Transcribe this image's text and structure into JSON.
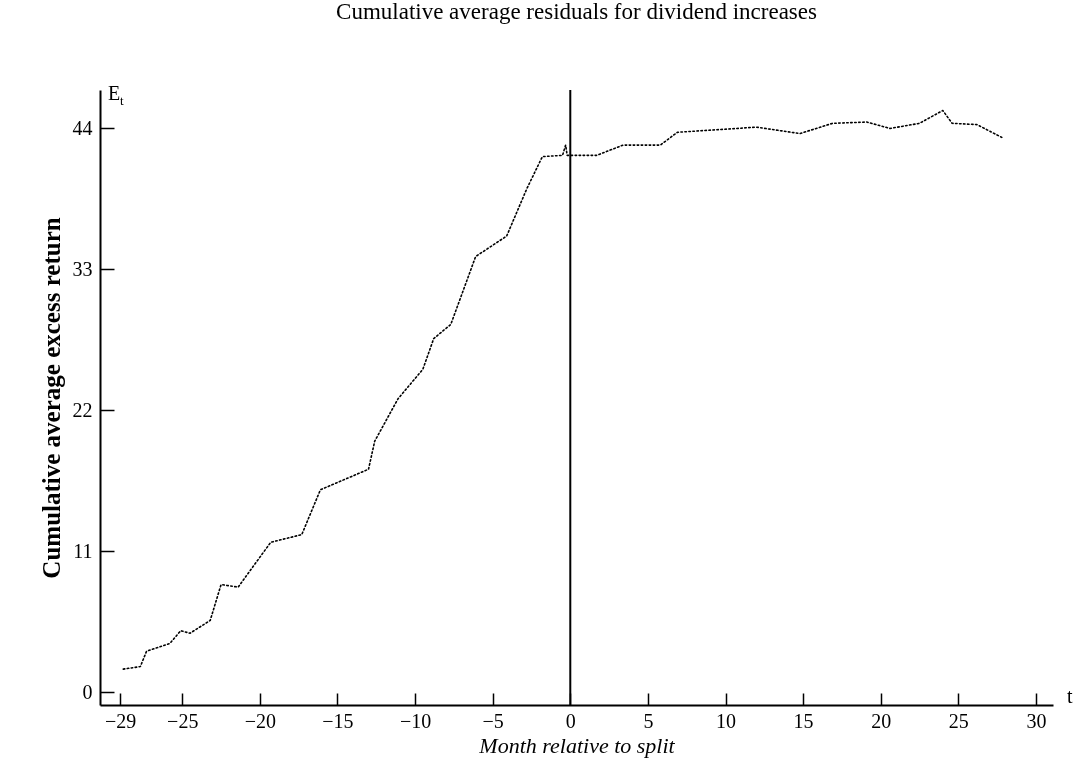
{
  "chart_data": {
    "type": "line",
    "title": "Cumulative average residuals for dividend increases",
    "xlabel": "Month relative to split",
    "ylabel": "Cumulative average excess return",
    "annotations": [
      "E$_{t}$",
      "t"
    ],
    "x": [
      -28.8,
      -27.7,
      -27.3,
      -25.8,
      -25.1,
      -24.5,
      -23.2,
      -22.5,
      -21.4,
      -19.3,
      -17.3,
      -16.1,
      -13.0,
      -12.6,
      -11.1,
      -9.5,
      -8.8,
      -7.7,
      -6.1,
      -4.1,
      -2.8,
      -1.8,
      -0.5,
      -0.3,
      -0.2,
      1.7,
      3.4,
      5.8,
      6.9,
      12.0,
      14.8,
      16.9,
      19.1,
      20.6,
      22.5,
      24.0,
      24.6,
      26.2,
      27.8
    ],
    "series": [
      {
        "color": "#000000",
        "values": [
          1.8,
          2.0,
          3.2,
          3.8,
          4.8,
          4.6,
          5.6,
          8.4,
          8.2,
          11.7,
          12.3,
          15.8,
          17.4,
          19.6,
          22.9,
          25.2,
          27.6,
          28.7,
          34.0,
          35.6,
          39.3,
          41.8,
          41.9,
          42.7,
          41.9,
          41.9,
          42.7,
          42.7,
          43.7,
          44.1,
          43.6,
          44.4,
          44.5,
          44.0,
          44.4,
          45.4,
          44.4,
          44.3,
          43.3
        ]
      }
    ],
    "line_style": "dotted",
    "marker": "none",
    "grid": false,
    "xlim": [
      -30.3,
      31.1
    ],
    "ylim": [
      -1,
      47
    ],
    "xticks": [
      -29,
      -25,
      -20,
      -15,
      -10,
      -5,
      0,
      5,
      10,
      15,
      20,
      25,
      30
    ],
    "yticks": [
      0,
      11,
      22,
      33,
      44
    ],
    "ref_lines": [
      {
        "axis": "x",
        "value": 0,
        "color": "#000000",
        "line_style": "solid"
      }
    ]
  }
}
